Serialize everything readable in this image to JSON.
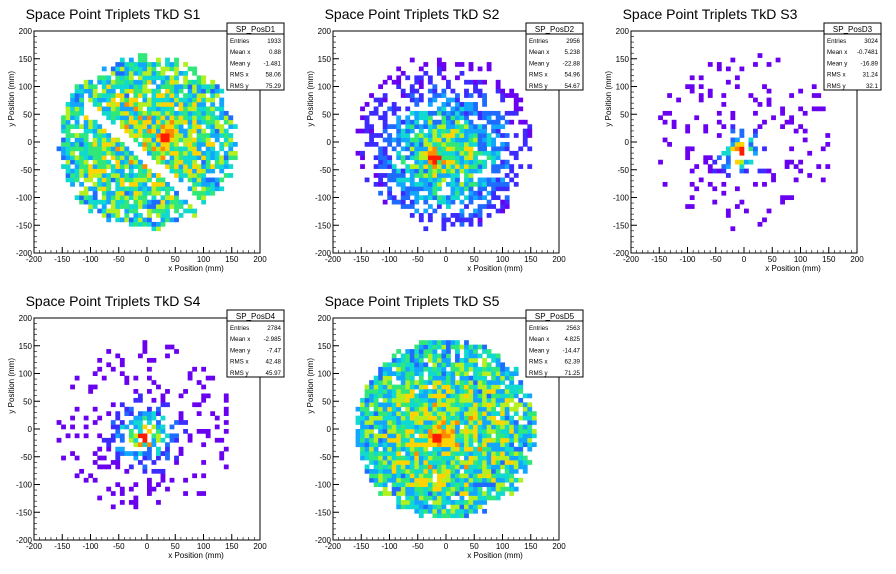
{
  "chart_data": [
    {
      "type": "heatmap",
      "title": "Space Point Triplets TkD S1",
      "xlabel": "x Position (mm)",
      "ylabel": "y Position (mm)",
      "xlim": [
        -200,
        200
      ],
      "ylim": [
        -200,
        200
      ],
      "xticks": [
        -200,
        -150,
        -100,
        -50,
        0,
        50,
        100,
        150,
        200
      ],
      "yticks": [
        -200,
        -150,
        -100,
        -50,
        0,
        50,
        100,
        150,
        200
      ],
      "stats": {
        "name": "SP_PosD1",
        "rows": [
          [
            "Entries",
            "1933"
          ],
          [
            "Mean x",
            "0.88"
          ],
          [
            "Mean y",
            "-1.481"
          ],
          [
            "RMS x",
            "58.06"
          ],
          [
            "RMS y",
            "75.29"
          ]
        ]
      },
      "dist": {
        "cx": 0,
        "cy": 0,
        "r": 150,
        "sigma": 200,
        "fill": 0.78,
        "hot": [
          30,
          10
        ],
        "gap": true,
        "seed": 11
      }
    },
    {
      "type": "heatmap",
      "title": "Space Point Triplets TkD S2",
      "xlabel": "x Position (mm)",
      "ylabel": "y Position (mm)",
      "xlim": [
        -200,
        200
      ],
      "ylim": [
        -200,
        200
      ],
      "xticks": [
        -200,
        -150,
        -100,
        -50,
        0,
        50,
        100,
        150,
        200
      ],
      "yticks": [
        -200,
        -150,
        -100,
        -50,
        0,
        50,
        100,
        150,
        200
      ],
      "stats": {
        "name": "SP_PosD2",
        "rows": [
          [
            "Entries",
            "2956"
          ],
          [
            "Mean x",
            "5.238"
          ],
          [
            "Mean y",
            "-22.88"
          ],
          [
            "RMS x",
            "54.96"
          ],
          [
            "RMS y",
            "54.67"
          ]
        ]
      },
      "dist": {
        "cx": 0,
        "cy": -25,
        "r": 150,
        "sigma": 80,
        "fill": 0.85,
        "hot": [
          -20,
          -30
        ],
        "gap": false,
        "seed": 23
      }
    },
    {
      "type": "heatmap",
      "title": "Space Point Triplets TkD S3",
      "xlabel": "x Position (mm)",
      "ylabel": "y Position (mm)",
      "xlim": [
        -200,
        200
      ],
      "ylim": [
        -200,
        200
      ],
      "xticks": [
        -200,
        -150,
        -100,
        -50,
        0,
        50,
        100,
        150,
        200
      ],
      "yticks": [
        -200,
        -150,
        -100,
        -50,
        0,
        50,
        100,
        150,
        200
      ],
      "stats": {
        "name": "SP_PosD3",
        "rows": [
          [
            "Entries",
            "3024"
          ],
          [
            "Mean x",
            "-0.7481"
          ],
          [
            "Mean y",
            "-16.89"
          ],
          [
            "RMS x",
            "31.24"
          ],
          [
            "RMS y",
            "32.1"
          ]
        ]
      },
      "dist": {
        "cx": -5,
        "cy": -20,
        "r": 150,
        "sigma": 28,
        "fill": 0.45,
        "hot": [
          -5,
          -20
        ],
        "gap": false,
        "seed": 37
      }
    },
    {
      "type": "heatmap",
      "title": "Space Point Triplets TkD S4",
      "xlabel": "x Position (mm)",
      "ylabel": "y Position (mm)",
      "xlim": [
        -200,
        200
      ],
      "ylim": [
        -200,
        200
      ],
      "xticks": [
        -200,
        -150,
        -100,
        -50,
        0,
        50,
        100,
        150,
        200
      ],
      "yticks": [
        -200,
        -150,
        -100,
        -50,
        0,
        50,
        100,
        150,
        200
      ],
      "stats": {
        "name": "SP_PosD4",
        "rows": [
          [
            "Entries",
            "2784"
          ],
          [
            "Mean x",
            "-2.985"
          ],
          [
            "Mean y",
            "-7.47"
          ],
          [
            "RMS x",
            "42.48"
          ],
          [
            "RMS y",
            "45.97"
          ]
        ]
      },
      "dist": {
        "cx": -5,
        "cy": -10,
        "r": 150,
        "sigma": 38,
        "fill": 0.6,
        "hot": [
          -5,
          -15
        ],
        "gap": false,
        "seed": 41
      }
    },
    {
      "type": "heatmap",
      "title": "Space Point Triplets TkD S5",
      "xlabel": "x Position (mm)",
      "ylabel": "y Position (mm)",
      "xlim": [
        -200,
        200
      ],
      "ylim": [
        -200,
        200
      ],
      "xticks": [
        -200,
        -150,
        -100,
        -50,
        0,
        50,
        100,
        150,
        200
      ],
      "yticks": [
        -200,
        -150,
        -100,
        -50,
        0,
        50,
        100,
        150,
        200
      ],
      "stats": {
        "name": "SP_PosD5",
        "rows": [
          [
            "Entries",
            "2563"
          ],
          [
            "Mean x",
            "4.825"
          ],
          [
            "Mean y",
            "-14.47"
          ],
          [
            "RMS x",
            "62.39"
          ],
          [
            "RMS y",
            "71.25"
          ]
        ]
      },
      "dist": {
        "cx": 0,
        "cy": -10,
        "r": 155,
        "sigma": 200,
        "fill": 0.85,
        "hot": [
          -15,
          -15
        ],
        "gap": false,
        "seed": 53
      }
    }
  ],
  "palette": [
    "#6a00f0",
    "#3b2bff",
    "#1f6bff",
    "#12a6ff",
    "#10d9d0",
    "#30e87a",
    "#b4f020",
    "#ffd400",
    "#ff8a00",
    "#ff1a00"
  ]
}
